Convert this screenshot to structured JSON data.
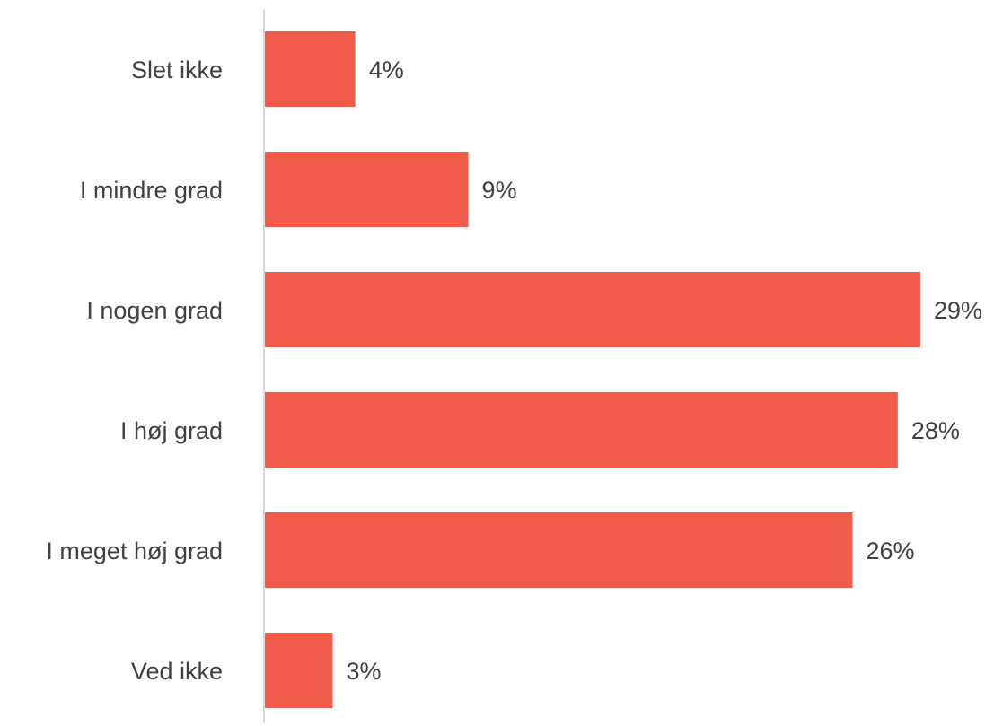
{
  "chart_data": {
    "type": "bar",
    "orientation": "horizontal",
    "categories": [
      "Slet ikke",
      "I mindre grad",
      "I nogen grad",
      "I høj grad",
      "I meget høj grad",
      "Ved ikke"
    ],
    "values": [
      4,
      9,
      29,
      28,
      26,
      3
    ],
    "data_labels": [
      "4%",
      "9%",
      "29%",
      "28%",
      "26%",
      "3%"
    ],
    "unit": "%",
    "xlim": [
      0,
      29
    ],
    "title": "",
    "xlabel": "",
    "ylabel": "",
    "grid": false,
    "legend": "none",
    "colors": {
      "bar": "#EF5D4A",
      "axis": "#D9D9D9",
      "text": "#404040"
    }
  }
}
